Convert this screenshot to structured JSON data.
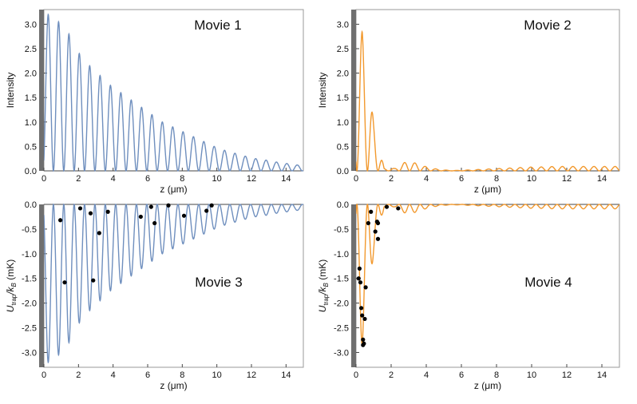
{
  "colors": {
    "blue": "#6f8fbe",
    "orange": "#f2992e",
    "dot": "#000000",
    "axis": "#444444",
    "wall": "#6f6f6f",
    "text": "#111111"
  },
  "chart_data": [
    {
      "type": "line",
      "title": "Movie 1",
      "xlabel": "z (μm)",
      "ylabel": "Intensity",
      "xlim": [
        0,
        15
      ],
      "ylim": [
        0,
        3.3
      ],
      "xticks": [
        0,
        2,
        4,
        6,
        8,
        10,
        12,
        14
      ],
      "yticks": [
        0.0,
        0.5,
        1.0,
        1.5,
        2.0,
        2.5,
        3.0
      ],
      "ytick_labels": [
        "0.0",
        "0.5",
        "1.0",
        "1.5",
        "2.0",
        "2.5",
        "3.0"
      ],
      "grid": false,
      "series": [
        {
          "name": "intensity",
          "color": "blue",
          "peaks": [
            [
              0.25,
              3.2
            ],
            [
              0.85,
              3.05
            ],
            [
              1.45,
              2.8
            ],
            [
              2.05,
              2.4
            ],
            [
              2.65,
              2.15
            ],
            [
              3.25,
              1.95
            ],
            [
              3.85,
              1.75
            ],
            [
              4.45,
              1.6
            ],
            [
              5.05,
              1.45
            ],
            [
              5.65,
              1.3
            ],
            [
              6.25,
              1.15
            ],
            [
              6.85,
              1.0
            ],
            [
              7.45,
              0.9
            ],
            [
              8.05,
              0.8
            ],
            [
              8.65,
              0.7
            ],
            [
              9.25,
              0.6
            ],
            [
              9.85,
              0.5
            ],
            [
              10.45,
              0.42
            ],
            [
              11.05,
              0.36
            ],
            [
              11.65,
              0.3
            ],
            [
              12.25,
              0.25
            ],
            [
              12.85,
              0.22
            ],
            [
              13.45,
              0.18
            ],
            [
              14.05,
              0.15
            ],
            [
              14.65,
              0.12
            ]
          ]
        }
      ]
    },
    {
      "type": "line",
      "title": "Movie 2",
      "xlabel": "z (μm)",
      "ylabel": "Intensity",
      "xlim": [
        0,
        15
      ],
      "ylim": [
        0,
        3.3
      ],
      "xticks": [
        0,
        2,
        4,
        6,
        8,
        10,
        12,
        14
      ],
      "yticks": [
        0.0,
        0.5,
        1.0,
        1.5,
        2.0,
        2.5,
        3.0
      ],
      "ytick_labels": [
        "0.0",
        "0.5",
        "1.0",
        "1.5",
        "2.0",
        "2.5",
        "3.0"
      ],
      "grid": false,
      "series": [
        {
          "name": "intensity",
          "color": "orange",
          "peaks": [
            [
              0.35,
              2.85
            ],
            [
              1.0,
              1.0
            ],
            [
              1.6,
              0.05
            ],
            [
              2.2,
              0.05
            ],
            [
              2.9,
              0.2
            ],
            [
              3.5,
              0.15
            ],
            [
              4.1,
              0.07
            ],
            [
              4.7,
              0.03
            ],
            [
              5.3,
              0.01
            ],
            [
              5.9,
              0.01
            ],
            [
              6.5,
              0.02
            ],
            [
              7.1,
              0.03
            ],
            [
              7.7,
              0.04
            ],
            [
              8.3,
              0.05
            ],
            [
              8.9,
              0.06
            ],
            [
              9.5,
              0.07
            ],
            [
              10.1,
              0.08
            ],
            [
              10.7,
              0.08
            ],
            [
              11.3,
              0.09
            ],
            [
              11.9,
              0.09
            ],
            [
              12.5,
              0.09
            ],
            [
              13.1,
              0.09
            ],
            [
              13.7,
              0.09
            ],
            [
              14.3,
              0.09
            ],
            [
              14.9,
              0.09
            ]
          ]
        }
      ]
    },
    {
      "type": "line",
      "title": "Movie 3",
      "xlabel": "z (μm)",
      "ylabel": "U_trap/k_B (mK)",
      "ylabel_parts": {
        "u": "U",
        "trap": "trap",
        "slash_k": "/k",
        "b": "B",
        "units": " (mK)"
      },
      "xlim": [
        0,
        15
      ],
      "ylim": [
        -3.3,
        0
      ],
      "xticks": [
        0,
        2,
        4,
        6,
        8,
        10,
        12,
        14
      ],
      "yticks": [
        0.0,
        -0.5,
        -1.0,
        -1.5,
        -2.0,
        -2.5,
        -3.0
      ],
      "ytick_labels": [
        "0.0",
        "-0.5",
        "-1.0",
        "-1.5",
        "-2.0",
        "-2.5",
        "-3.0"
      ],
      "grid": false,
      "series": [
        {
          "name": "potential",
          "color": "blue",
          "peaks": [
            [
              0.25,
              -3.2
            ],
            [
              0.85,
              -3.05
            ],
            [
              1.45,
              -2.8
            ],
            [
              2.05,
              -2.4
            ],
            [
              2.65,
              -2.15
            ],
            [
              3.25,
              -1.95
            ],
            [
              3.85,
              -1.75
            ],
            [
              4.45,
              -1.6
            ],
            [
              5.05,
              -1.45
            ],
            [
              5.65,
              -1.3
            ],
            [
              6.25,
              -1.15
            ],
            [
              6.85,
              -1.0
            ],
            [
              7.45,
              -0.9
            ],
            [
              8.05,
              -0.8
            ],
            [
              8.65,
              -0.7
            ],
            [
              9.25,
              -0.6
            ],
            [
              9.85,
              -0.5
            ],
            [
              10.45,
              -0.42
            ],
            [
              11.05,
              -0.36
            ],
            [
              11.65,
              -0.3
            ],
            [
              12.25,
              -0.25
            ],
            [
              12.85,
              -0.22
            ],
            [
              13.45,
              -0.18
            ],
            [
              14.05,
              -0.15
            ],
            [
              14.65,
              -0.12
            ]
          ]
        },
        {
          "name": "atoms",
          "type": "scatter",
          "color": "dot",
          "points": [
            [
              0.95,
              -0.32
            ],
            [
              1.2,
              -1.58
            ],
            [
              2.1,
              -0.08
            ],
            [
              2.7,
              -0.18
            ],
            [
              2.85,
              -1.54
            ],
            [
              3.2,
              -0.58
            ],
            [
              3.7,
              -0.15
            ],
            [
              5.6,
              -0.25
            ],
            [
              6.2,
              -0.05
            ],
            [
              6.4,
              -0.38
            ],
            [
              7.2,
              -0.02
            ],
            [
              8.1,
              -0.23
            ],
            [
              9.4,
              -0.13
            ],
            [
              9.7,
              -0.02
            ]
          ]
        }
      ]
    },
    {
      "type": "line",
      "title": "Movie 4",
      "xlabel": "z (μm)",
      "ylabel": "U_trap/k_B (mK)",
      "ylabel_parts": {
        "u": "U",
        "trap": "trap",
        "slash_k": "/k",
        "b": "B",
        "units": " (mK)"
      },
      "xlim": [
        0,
        15
      ],
      "ylim": [
        -3.3,
        0
      ],
      "xticks": [
        0,
        2,
        4,
        6,
        8,
        10,
        12,
        14
      ],
      "yticks": [
        0.0,
        -0.5,
        -1.0,
        -1.5,
        -2.0,
        -2.5,
        -3.0
      ],
      "ytick_labels": [
        "0.0",
        "-0.5",
        "-1.0",
        "-1.5",
        "-2.0",
        "-2.5",
        "-3.0"
      ],
      "grid": false,
      "series": [
        {
          "name": "potential",
          "color": "orange",
          "peaks": [
            [
              0.35,
              -2.85
            ],
            [
              1.0,
              -1.0
            ],
            [
              1.6,
              -0.05
            ],
            [
              2.2,
              -0.05
            ],
            [
              2.9,
              -0.2
            ],
            [
              3.5,
              -0.15
            ],
            [
              4.1,
              -0.07
            ],
            [
              4.7,
              -0.03
            ],
            [
              5.3,
              -0.01
            ],
            [
              5.9,
              -0.01
            ],
            [
              6.5,
              -0.02
            ],
            [
              7.1,
              -0.03
            ],
            [
              7.7,
              -0.04
            ],
            [
              8.3,
              -0.05
            ],
            [
              8.9,
              -0.06
            ],
            [
              9.5,
              -0.07
            ],
            [
              10.1,
              -0.08
            ],
            [
              10.7,
              -0.08
            ],
            [
              11.3,
              -0.09
            ],
            [
              11.9,
              -0.09
            ],
            [
              12.5,
              -0.09
            ],
            [
              13.1,
              -0.09
            ],
            [
              13.7,
              -0.09
            ],
            [
              14.3,
              -0.09
            ],
            [
              14.9,
              -0.09
            ]
          ]
        },
        {
          "name": "atoms",
          "type": "scatter",
          "color": "dot",
          "points": [
            [
              0.2,
              -1.3
            ],
            [
              0.15,
              -1.5
            ],
            [
              0.25,
              -1.58
            ],
            [
              0.3,
              -2.1
            ],
            [
              0.35,
              -2.25
            ],
            [
              0.4,
              -2.74
            ],
            [
              0.45,
              -2.82
            ],
            [
              0.4,
              -2.85
            ],
            [
              0.5,
              -2.32
            ],
            [
              0.55,
              -1.68
            ],
            [
              0.7,
              -0.38
            ],
            [
              0.85,
              -0.15
            ],
            [
              1.1,
              -0.55
            ],
            [
              1.2,
              -0.35
            ],
            [
              1.25,
              -0.38
            ],
            [
              1.25,
              -0.7
            ],
            [
              1.75,
              -0.05
            ],
            [
              2.4,
              -0.08
            ]
          ]
        }
      ]
    }
  ]
}
